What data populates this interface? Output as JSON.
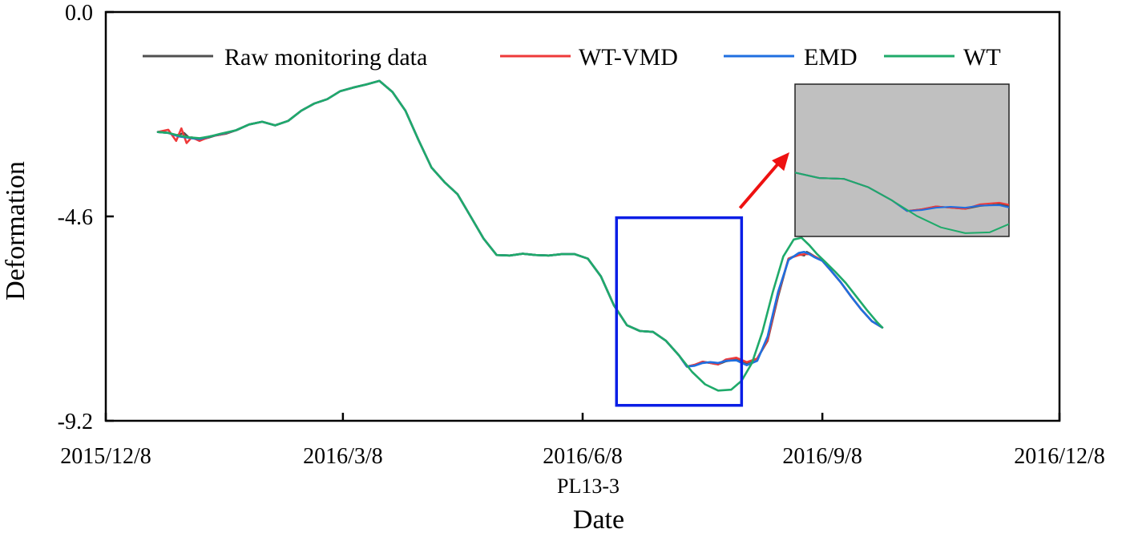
{
  "chart_data": {
    "type": "line",
    "title": "",
    "subtitle": "PL13-3",
    "xlabel": "Date",
    "ylabel": "Deformation",
    "x_ticks": [
      "2015/12/8",
      "2016/3/8",
      "2016/6/8",
      "2016/9/8",
      "2016/12/8"
    ],
    "y_ticks": [
      "0.0",
      "-4.6",
      "-9.2"
    ],
    "xlim_days": [
      0,
      366
    ],
    "ylim": [
      -9.2,
      0.0
    ],
    "x_unit": "days since 2015/12/8",
    "legend": {
      "position": "top",
      "entries": [
        "Raw monitoring data",
        "WT-VMD",
        "EMD",
        "WT"
      ]
    },
    "colors": {
      "Raw monitoring data": "#505050",
      "WT-VMD": "#ee3a3a",
      "EMD": "#1f6fe0",
      "WT": "#1faa6a",
      "box": "#0a1ee6",
      "arrow": "#ee1111",
      "inset_bg": "#c0c0c0"
    },
    "series": [
      {
        "name": "Raw monitoring data",
        "x": [
          20,
          24,
          27,
          30,
          32,
          35,
          38,
          42,
          46,
          50,
          55,
          60,
          65,
          70,
          75,
          80,
          85,
          90,
          95,
          100,
          105,
          110,
          115,
          120,
          125,
          130,
          135,
          140,
          145,
          150,
          155,
          160,
          165,
          170,
          175,
          180,
          185,
          190,
          195,
          200,
          205,
          210,
          215,
          220,
          223,
          226,
          229,
          232,
          235,
          238,
          242,
          246,
          250,
          254,
          258,
          262,
          266,
          268,
          269,
          270,
          272,
          275,
          278,
          282,
          286,
          290,
          294,
          298
        ],
        "y": [
          -2.7,
          -2.72,
          -2.78,
          -2.72,
          -2.83,
          -2.86,
          -2.85,
          -2.78,
          -2.74,
          -2.66,
          -2.53,
          -2.47,
          -2.55,
          -2.45,
          -2.22,
          -2.06,
          -1.96,
          -1.78,
          -1.7,
          -1.63,
          -1.55,
          -1.8,
          -2.22,
          -2.88,
          -3.5,
          -3.83,
          -4.1,
          -4.6,
          -5.1,
          -5.47,
          -5.48,
          -5.44,
          -5.47,
          -5.48,
          -5.45,
          -5.45,
          -5.55,
          -5.95,
          -6.6,
          -7.05,
          -7.18,
          -7.2,
          -7.4,
          -7.73,
          -7.98,
          -7.94,
          -7.87,
          -7.9,
          -7.93,
          -7.86,
          -7.82,
          -7.9,
          -7.8,
          -7.4,
          -6.4,
          -5.55,
          -5.45,
          -5.48,
          -5.4,
          -5.43,
          -5.5,
          -5.6,
          -5.8,
          -6.08,
          -6.4,
          -6.7,
          -6.96,
          -7.1
        ]
      },
      {
        "name": "WT-VMD",
        "x": [
          20,
          24,
          27,
          29,
          31,
          33,
          36,
          40,
          44,
          50,
          55,
          60,
          65,
          70,
          75,
          80,
          85,
          90,
          95,
          100,
          105,
          110,
          115,
          120,
          125,
          130,
          135,
          140,
          145,
          150,
          155,
          160,
          165,
          170,
          175,
          180,
          185,
          190,
          195,
          200,
          205,
          210,
          215,
          220,
          223,
          226,
          229,
          232,
          235,
          238,
          242,
          246,
          250,
          254,
          258,
          262,
          266,
          268,
          270,
          272,
          275,
          278,
          282,
          286,
          290,
          294,
          298
        ],
        "y": [
          -2.7,
          -2.65,
          -2.9,
          -2.62,
          -2.95,
          -2.82,
          -2.9,
          -2.8,
          -2.76,
          -2.66,
          -2.53,
          -2.47,
          -2.55,
          -2.45,
          -2.22,
          -2.06,
          -1.96,
          -1.78,
          -1.7,
          -1.63,
          -1.55,
          -1.8,
          -2.22,
          -2.88,
          -3.5,
          -3.83,
          -4.1,
          -4.6,
          -5.1,
          -5.47,
          -5.48,
          -5.44,
          -5.47,
          -5.48,
          -5.45,
          -5.45,
          -5.55,
          -5.95,
          -6.6,
          -7.05,
          -7.18,
          -7.2,
          -7.4,
          -7.73,
          -7.98,
          -7.94,
          -7.87,
          -7.9,
          -7.93,
          -7.82,
          -7.78,
          -7.88,
          -7.8,
          -7.38,
          -6.35,
          -5.55,
          -5.47,
          -5.45,
          -5.45,
          -5.5,
          -5.6,
          -5.8,
          -6.08,
          -6.4,
          -6.7,
          -6.96,
          -7.1
        ]
      },
      {
        "name": "EMD",
        "x": [
          20,
          24,
          28,
          32,
          36,
          40,
          44,
          50,
          55,
          60,
          65,
          70,
          75,
          80,
          85,
          90,
          95,
          100,
          105,
          110,
          115,
          120,
          125,
          130,
          135,
          140,
          145,
          150,
          155,
          160,
          165,
          170,
          175,
          180,
          185,
          190,
          195,
          200,
          205,
          210,
          215,
          220,
          223,
          226,
          229,
          232,
          235,
          238,
          242,
          246,
          250,
          254,
          258,
          262,
          266,
          268,
          270,
          272,
          275,
          278,
          282,
          286,
          290,
          294,
          298
        ],
        "y": [
          -2.7,
          -2.72,
          -2.8,
          -2.83,
          -2.86,
          -2.8,
          -2.75,
          -2.66,
          -2.53,
          -2.47,
          -2.55,
          -2.45,
          -2.22,
          -2.06,
          -1.96,
          -1.78,
          -1.7,
          -1.63,
          -1.55,
          -1.8,
          -2.22,
          -2.88,
          -3.5,
          -3.83,
          -4.1,
          -4.6,
          -5.1,
          -5.47,
          -5.48,
          -5.44,
          -5.47,
          -5.48,
          -5.45,
          -5.45,
          -5.55,
          -5.95,
          -6.6,
          -7.05,
          -7.18,
          -7.2,
          -7.4,
          -7.73,
          -7.98,
          -7.96,
          -7.9,
          -7.88,
          -7.9,
          -7.85,
          -7.84,
          -7.95,
          -7.85,
          -7.3,
          -6.3,
          -5.58,
          -5.42,
          -5.4,
          -5.45,
          -5.52,
          -5.6,
          -5.8,
          -6.08,
          -6.4,
          -6.7,
          -6.96,
          -7.1
        ]
      },
      {
        "name": "WT",
        "x": [
          20,
          24,
          28,
          32,
          36,
          40,
          44,
          50,
          55,
          60,
          65,
          70,
          75,
          80,
          85,
          90,
          95,
          100,
          105,
          110,
          115,
          120,
          125,
          130,
          135,
          140,
          145,
          150,
          155,
          160,
          165,
          170,
          175,
          180,
          185,
          190,
          195,
          200,
          205,
          210,
          215,
          220,
          225,
          230,
          235,
          240,
          244,
          248,
          252,
          256,
          260,
          264,
          267,
          270,
          273,
          276,
          280,
          284,
          288,
          292,
          296,
          298
        ],
        "y": [
          -2.7,
          -2.72,
          -2.78,
          -2.82,
          -2.84,
          -2.8,
          -2.74,
          -2.66,
          -2.53,
          -2.47,
          -2.55,
          -2.45,
          -2.22,
          -2.06,
          -1.96,
          -1.78,
          -1.7,
          -1.63,
          -1.55,
          -1.8,
          -2.22,
          -2.88,
          -3.5,
          -3.83,
          -4.1,
          -4.6,
          -5.1,
          -5.47,
          -5.48,
          -5.44,
          -5.47,
          -5.48,
          -5.45,
          -5.45,
          -5.55,
          -5.95,
          -6.6,
          -7.05,
          -7.18,
          -7.2,
          -7.4,
          -7.73,
          -8.1,
          -8.38,
          -8.52,
          -8.5,
          -8.3,
          -7.9,
          -7.2,
          -6.3,
          -5.5,
          -5.12,
          -5.08,
          -5.25,
          -5.45,
          -5.62,
          -5.85,
          -6.1,
          -6.4,
          -6.7,
          -6.98,
          -7.1
        ]
      }
    ],
    "zoom_region": {
      "x": [
        200,
        244
      ],
      "y": [
        -8.6,
        -4.9
      ]
    },
    "inset": {
      "x": [
        200,
        244
      ],
      "y": [
        -8.6,
        -4.9
      ],
      "background": "gray"
    }
  }
}
